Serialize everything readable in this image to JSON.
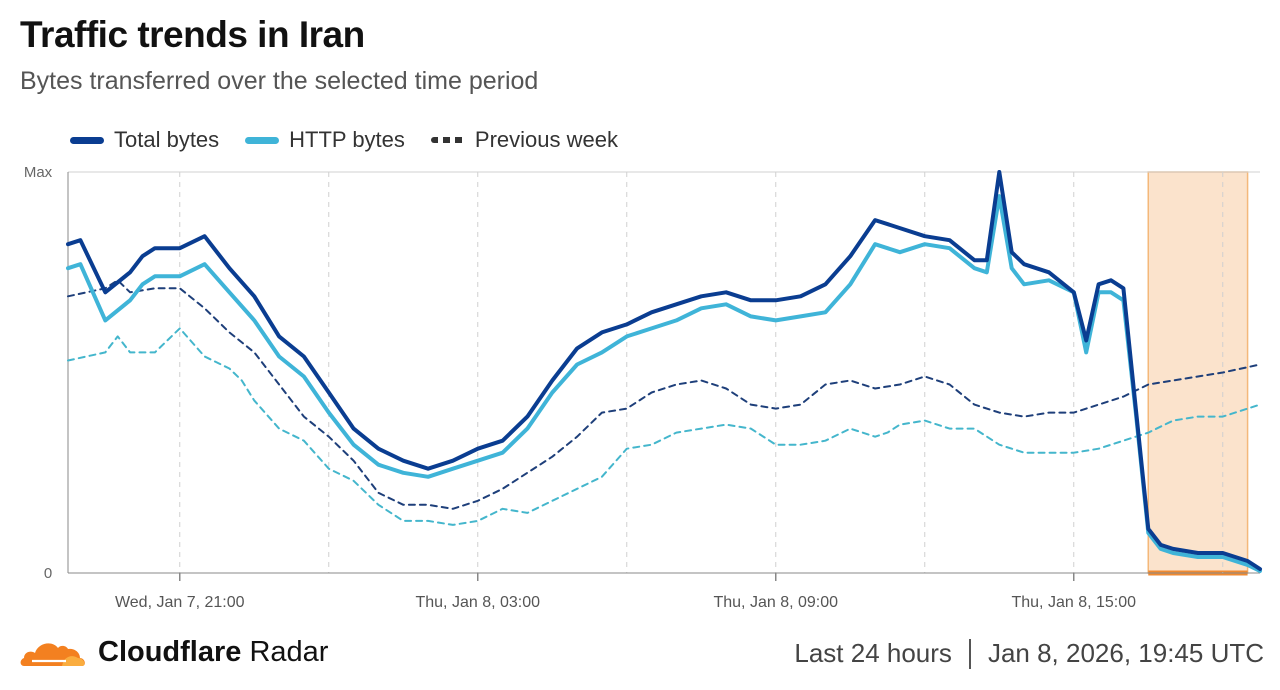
{
  "header": {
    "title": "Traffic trends in Iran",
    "subtitle": "Bytes transferred over the selected time period"
  },
  "legend": {
    "total": "Total bytes",
    "http": "HTTP bytes",
    "previous": "Previous week"
  },
  "colors": {
    "total": "#0a3d91",
    "http": "#3fb4d8",
    "prev_total": "#1e3f7a",
    "prev_http": "#44b6cc",
    "highlight_fill": "#fbe3cc",
    "highlight_border": "#f4b87a",
    "highlight_bar": "#f08a30",
    "grid": "#d0d0d0",
    "axis": "#888888"
  },
  "chart_data": {
    "type": "line",
    "title": "Traffic trends in Iran",
    "ylabel": "",
    "xlabel": "",
    "ylim": [
      0,
      100
    ],
    "y_tick_labels": [
      "0",
      "Max"
    ],
    "x_tick_labels": [
      "Wed, Jan 7, 21:00",
      "Thu, Jan 8, 03:00",
      "Thu, Jan 8, 09:00",
      "Thu, Jan 8, 15:00"
    ],
    "x_tick_hours": [
      2.0,
      8.0,
      14.0,
      20.0
    ],
    "x_range_hours": [
      -0.25,
      23.75
    ],
    "grid_lines_hours": [
      2.0,
      5.0,
      8.0,
      11.0,
      14.0,
      17.0,
      20.0,
      23.0
    ],
    "highlight_range_hours": [
      21.5,
      23.5
    ],
    "series": [
      {
        "name": "Previous week (HTTP bytes)",
        "style": "dashed",
        "x": [
          -0.25,
          0.5,
          0.75,
          1.0,
          1.5,
          2.0,
          2.5,
          3.0,
          3.25,
          3.5,
          4.0,
          4.5,
          5.0,
          5.5,
          6.0,
          6.5,
          7.0,
          7.5,
          8.0,
          8.5,
          9.0,
          9.5,
          10.0,
          10.5,
          11.0,
          11.5,
          12.0,
          12.5,
          13.0,
          13.5,
          14.0,
          14.5,
          15.0,
          15.5,
          16.0,
          16.25,
          16.5,
          17.0,
          17.5,
          18.0,
          18.5,
          19.0,
          19.5,
          20.0,
          20.5,
          21.0,
          21.5,
          22.0,
          22.5,
          23.0,
          23.75
        ],
        "y": [
          53,
          55,
          59,
          55,
          55,
          61,
          54,
          51,
          48,
          43,
          36,
          33,
          26,
          23,
          17,
          13,
          13,
          12,
          13,
          16,
          15,
          18,
          21,
          24,
          31,
          32,
          35,
          36,
          37,
          36,
          32,
          32,
          33,
          36,
          34,
          35,
          37,
          38,
          36,
          36,
          32,
          30,
          30,
          30,
          31,
          33,
          35,
          38,
          39,
          39,
          42
        ]
      },
      {
        "name": "Previous week (Total bytes)",
        "style": "dashed",
        "x": [
          -0.25,
          0.5,
          0.75,
          1.0,
          1.5,
          2.0,
          2.5,
          3.0,
          3.5,
          4.0,
          4.5,
          5.0,
          5.5,
          6.0,
          6.5,
          7.0,
          7.5,
          8.0,
          8.5,
          9.0,
          9.5,
          10.0,
          10.5,
          11.0,
          11.5,
          12.0,
          12.5,
          13.0,
          13.5,
          14.0,
          14.5,
          15.0,
          15.5,
          16.0,
          16.5,
          17.0,
          17.5,
          18.0,
          18.5,
          19.0,
          19.5,
          20.0,
          20.5,
          21.0,
          21.5,
          22.0,
          22.5,
          23.0,
          23.75
        ],
        "y": [
          69,
          71,
          73,
          70,
          71,
          71,
          66,
          60,
          55,
          47,
          39,
          34,
          28,
          20,
          17,
          17,
          16,
          18,
          21,
          25,
          29,
          34,
          40,
          41,
          45,
          47,
          48,
          46,
          42,
          41,
          42,
          47,
          48,
          46,
          47,
          49,
          47,
          42,
          40,
          39,
          40,
          40,
          42,
          44,
          47,
          48,
          49,
          50,
          52
        ]
      },
      {
        "name": "HTTP bytes",
        "style": "solid",
        "x": [
          -0.25,
          0.0,
          0.5,
          1.0,
          1.25,
          1.5,
          2.0,
          2.5,
          3.0,
          3.5,
          4.0,
          4.5,
          5.0,
          5.5,
          6.0,
          6.5,
          7.0,
          7.5,
          8.0,
          8.5,
          9.0,
          9.5,
          10.0,
          10.5,
          11.0,
          11.5,
          12.0,
          12.5,
          13.0,
          13.5,
          14.0,
          14.5,
          15.0,
          15.5,
          16.0,
          16.5,
          17.0,
          17.5,
          18.0,
          18.25,
          18.5,
          18.75,
          19.0,
          19.5,
          20.0,
          20.25,
          20.5,
          20.75,
          21.0,
          21.25,
          21.5,
          21.75,
          22.0,
          22.5,
          23.0,
          23.25,
          23.5,
          23.75
        ],
        "y": [
          76,
          77,
          63,
          68,
          72,
          74,
          74,
          77,
          70,
          63,
          54,
          49,
          40,
          32,
          27,
          25,
          24,
          26,
          28,
          30,
          36,
          45,
          52,
          55,
          59,
          61,
          63,
          66,
          67,
          64,
          63,
          64,
          65,
          72,
          82,
          80,
          82,
          81,
          76,
          75,
          94,
          76,
          72,
          73,
          70,
          55,
          70,
          70,
          68,
          40,
          10,
          6,
          5,
          4,
          4,
          3,
          2,
          0.5
        ]
      },
      {
        "name": "Total bytes",
        "style": "solid",
        "x": [
          -0.25,
          0.0,
          0.5,
          1.0,
          1.25,
          1.5,
          2.0,
          2.5,
          3.0,
          3.5,
          4.0,
          4.5,
          5.0,
          5.5,
          6.0,
          6.5,
          7.0,
          7.5,
          8.0,
          8.5,
          9.0,
          9.5,
          10.0,
          10.5,
          11.0,
          11.5,
          12.0,
          12.5,
          13.0,
          13.5,
          14.0,
          14.5,
          15.0,
          15.5,
          16.0,
          16.5,
          17.0,
          17.5,
          18.0,
          18.25,
          18.5,
          18.75,
          19.0,
          19.5,
          20.0,
          20.25,
          20.5,
          20.75,
          21.0,
          21.25,
          21.5,
          21.75,
          22.0,
          22.5,
          23.0,
          23.25,
          23.5,
          23.75
        ],
        "y": [
          82,
          83,
          70,
          75,
          79,
          81,
          81,
          84,
          76,
          69,
          59,
          54,
          45,
          36,
          31,
          28,
          26,
          28,
          31,
          33,
          39,
          48,
          56,
          60,
          62,
          65,
          67,
          69,
          70,
          68,
          68,
          69,
          72,
          79,
          88,
          86,
          84,
          83,
          78,
          78,
          100,
          80,
          77,
          75,
          70,
          58,
          72,
          73,
          71,
          41,
          11,
          7,
          6,
          5,
          5,
          4,
          3,
          1
        ]
      }
    ]
  },
  "footer": {
    "brand_name": "Cloudflare",
    "brand_product": "Radar",
    "period": "Last 24 hours",
    "timestamp": "Jan 8, 2026, 19:45 UTC"
  }
}
